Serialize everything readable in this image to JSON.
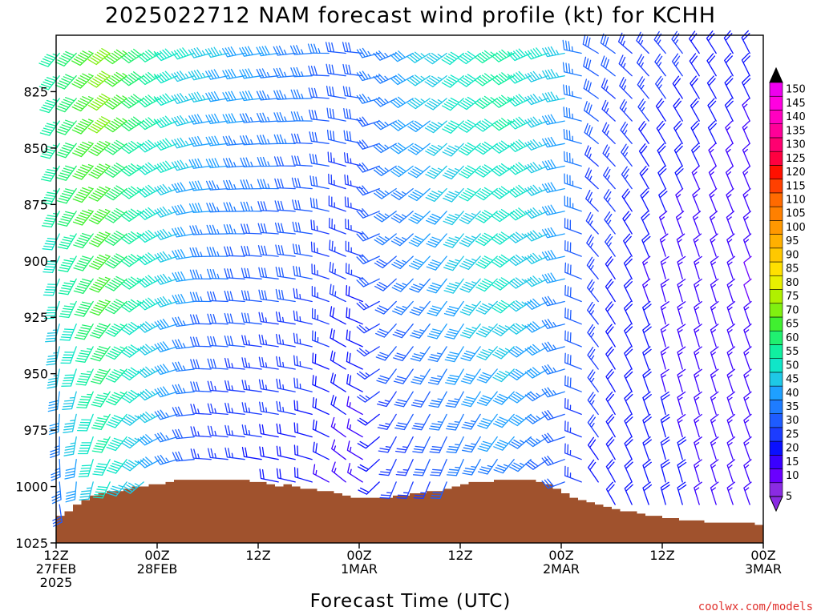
{
  "chart_data": {
    "type": "wind_barb_profile",
    "title": "2025022712 NAM forecast wind profile (kt) for KCHH",
    "xlabel": "Forecast Time (UTC)",
    "ylabel": "",
    "y_axis": {
      "reversed": true,
      "range": [
        800,
        1025
      ],
      "ticks": [
        825,
        850,
        875,
        900,
        925,
        950,
        975,
        1000,
        1025
      ]
    },
    "x_axis": {
      "range_hours": [
        0,
        84
      ],
      "ticks": [
        {
          "hour": 0,
          "line1": "12Z",
          "line2": "27FEB",
          "line3": "2025"
        },
        {
          "hour": 12,
          "line1": "00Z",
          "line2": "28FEB",
          "line3": ""
        },
        {
          "hour": 24,
          "line1": "12Z",
          "line2": "",
          "line3": ""
        },
        {
          "hour": 36,
          "line1": "00Z",
          "line2": "1MAR",
          "line3": ""
        },
        {
          "hour": 48,
          "line1": "12Z",
          "line2": "",
          "line3": ""
        },
        {
          "hour": 60,
          "line1": "00Z",
          "line2": "2MAR",
          "line3": ""
        },
        {
          "hour": 72,
          "line1": "12Z",
          "line2": "",
          "line3": ""
        },
        {
          "hour": 84,
          "line1": "00Z",
          "line2": "3MAR",
          "line3": ""
        }
      ]
    },
    "colorbar": {
      "labels": [
        "5",
        "10",
        "15",
        "20",
        "25",
        "30",
        "35",
        "40",
        "45",
        "50",
        "55",
        "60",
        "65",
        "70",
        "75",
        "80",
        "85",
        "90",
        "95",
        "100",
        "105",
        "110",
        "115",
        "120",
        "125",
        "130",
        "135",
        "140",
        "145",
        "150"
      ],
      "colors": [
        "#8a2be2",
        "#6a00ff",
        "#3a00ff",
        "#0a10ff",
        "#1c3cff",
        "#1e5cff",
        "#1e7cff",
        "#1ea0ff",
        "#1ec8e6",
        "#10e6c8",
        "#10f0a0",
        "#20f070",
        "#40f030",
        "#80f010",
        "#b0f000",
        "#e8f000",
        "#ffe000",
        "#ffc800",
        "#ffb000",
        "#ff9800",
        "#ff8000",
        "#ff6a00",
        "#ff4000",
        "#ff1000",
        "#ff0040",
        "#ff0070",
        "#ff0098",
        "#ff00c0",
        "#ff00e0",
        "#ee00ee"
      ]
    },
    "terrain_color": "#a0522d",
    "terrain_surface_pressure": [
      [
        0,
        1013
      ],
      [
        1,
        1011
      ],
      [
        2,
        1008
      ],
      [
        3,
        1006
      ],
      [
        4,
        1004
      ],
      [
        5,
        1003
      ],
      [
        6,
        1002
      ],
      [
        7,
        1002
      ],
      [
        8,
        1001
      ],
      [
        9,
        1000
      ],
      [
        10,
        1000
      ],
      [
        11,
        999
      ],
      [
        12,
        999
      ],
      [
        13,
        998
      ],
      [
        14,
        997
      ],
      [
        15,
        997
      ],
      [
        16,
        997
      ],
      [
        17,
        997
      ],
      [
        18,
        997
      ],
      [
        19,
        997
      ],
      [
        20,
        997
      ],
      [
        21,
        997
      ],
      [
        22,
        997
      ],
      [
        23,
        998
      ],
      [
        24,
        998
      ],
      [
        25,
        999
      ],
      [
        26,
        1000
      ],
      [
        27,
        999
      ],
      [
        28,
        1000
      ],
      [
        29,
        1001
      ],
      [
        30,
        1001
      ],
      [
        31,
        1002
      ],
      [
        32,
        1002
      ],
      [
        33,
        1003
      ],
      [
        34,
        1004
      ],
      [
        35,
        1005
      ],
      [
        36,
        1005
      ],
      [
        37,
        1005
      ],
      [
        38,
        1005
      ],
      [
        39,
        1005
      ],
      [
        40,
        1004
      ],
      [
        41,
        1004
      ],
      [
        42,
        1003
      ],
      [
        43,
        1003
      ],
      [
        44,
        1002
      ],
      [
        45,
        1002
      ],
      [
        46,
        1001
      ],
      [
        47,
        1000
      ],
      [
        48,
        999
      ],
      [
        49,
        998
      ],
      [
        50,
        998
      ],
      [
        51,
        998
      ],
      [
        52,
        997
      ],
      [
        53,
        997
      ],
      [
        54,
        997
      ],
      [
        55,
        997
      ],
      [
        56,
        997
      ],
      [
        57,
        998
      ],
      [
        58,
        999
      ],
      [
        59,
        1001
      ],
      [
        60,
        1003
      ],
      [
        61,
        1005
      ],
      [
        62,
        1006
      ],
      [
        63,
        1007
      ],
      [
        64,
        1008
      ],
      [
        65,
        1009
      ],
      [
        66,
        1010
      ],
      [
        67,
        1011
      ],
      [
        68,
        1011
      ],
      [
        69,
        1012
      ],
      [
        70,
        1013
      ],
      [
        71,
        1013
      ],
      [
        72,
        1014
      ],
      [
        73,
        1014
      ],
      [
        74,
        1015
      ],
      [
        75,
        1015
      ],
      [
        76,
        1015
      ],
      [
        77,
        1016
      ],
      [
        78,
        1016
      ],
      [
        79,
        1016
      ],
      [
        80,
        1016
      ],
      [
        81,
        1016
      ],
      [
        82,
        1016
      ],
      [
        83,
        1017
      ],
      [
        84,
        1018
      ]
    ],
    "wind_keyframes": [
      {
        "hour": 0,
        "low": {
          "speed": 30,
          "dir": 170
        },
        "mid": {
          "speed": 50,
          "dir": 200
        },
        "top": {
          "speed": 55,
          "dir": 220
        }
      },
      {
        "hour": 6,
        "low": {
          "speed": 50,
          "dir": 200
        },
        "mid": {
          "speed": 65,
          "dir": 220
        },
        "top": {
          "speed": 70,
          "dir": 230
        }
      },
      {
        "hour": 12,
        "low": {
          "speed": 40,
          "dir": 240
        },
        "mid": {
          "speed": 50,
          "dir": 240
        },
        "top": {
          "speed": 55,
          "dir": 240
        }
      },
      {
        "hour": 18,
        "low": {
          "speed": 22,
          "dir": 275
        },
        "mid": {
          "speed": 35,
          "dir": 270
        },
        "top": {
          "speed": 45,
          "dir": 255
        }
      },
      {
        "hour": 24,
        "low": {
          "speed": 20,
          "dir": 280
        },
        "mid": {
          "speed": 30,
          "dir": 275
        },
        "top": {
          "speed": 40,
          "dir": 260
        }
      },
      {
        "hour": 30,
        "low": {
          "speed": 18,
          "dir": 285
        },
        "mid": {
          "speed": 28,
          "dir": 280
        },
        "top": {
          "speed": 35,
          "dir": 265
        }
      },
      {
        "hour": 36,
        "low": {
          "speed": 12,
          "dir": 320
        },
        "mid": {
          "speed": 22,
          "dir": 300
        },
        "top": {
          "speed": 30,
          "dir": 280
        }
      },
      {
        "hour": 39,
        "low": {
          "speed": 20,
          "dir": 200
        },
        "mid": {
          "speed": 30,
          "dir": 230
        },
        "top": {
          "speed": 35,
          "dir": 250
        }
      },
      {
        "hour": 48,
        "low": {
          "speed": 30,
          "dir": 200
        },
        "mid": {
          "speed": 42,
          "dir": 215
        },
        "top": {
          "speed": 50,
          "dir": 230
        }
      },
      {
        "hour": 54,
        "low": {
          "speed": 35,
          "dir": 215
        },
        "mid": {
          "speed": 50,
          "dir": 230
        },
        "top": {
          "speed": 55,
          "dir": 240
        }
      },
      {
        "hour": 60,
        "low": {
          "speed": 28,
          "dir": 240
        },
        "mid": {
          "speed": 40,
          "dir": 250
        },
        "top": {
          "speed": 45,
          "dir": 255
        }
      },
      {
        "hour": 64,
        "low": {
          "speed": 22,
          "dir": 325
        },
        "mid": {
          "speed": 25,
          "dir": 320
        },
        "top": {
          "speed": 30,
          "dir": 300
        }
      },
      {
        "hour": 72,
        "low": {
          "speed": 20,
          "dir": 345
        },
        "mid": {
          "speed": 15,
          "dir": 345
        },
        "top": {
          "speed": 25,
          "dir": 320
        }
      },
      {
        "hour": 84,
        "low": {
          "speed": 12,
          "dir": 340
        },
        "mid": {
          "speed": 12,
          "dir": 340
        },
        "top": {
          "speed": 18,
          "dir": 335
        }
      }
    ],
    "barb_levels_hpa": [
      808,
      818,
      828,
      838,
      848,
      858,
      868,
      878,
      888,
      898,
      908,
      918,
      928,
      938,
      948,
      958,
      968,
      978,
      988,
      998,
      1008
    ],
    "barb_hours_step": 2,
    "credit": "coolwx.com/models"
  }
}
